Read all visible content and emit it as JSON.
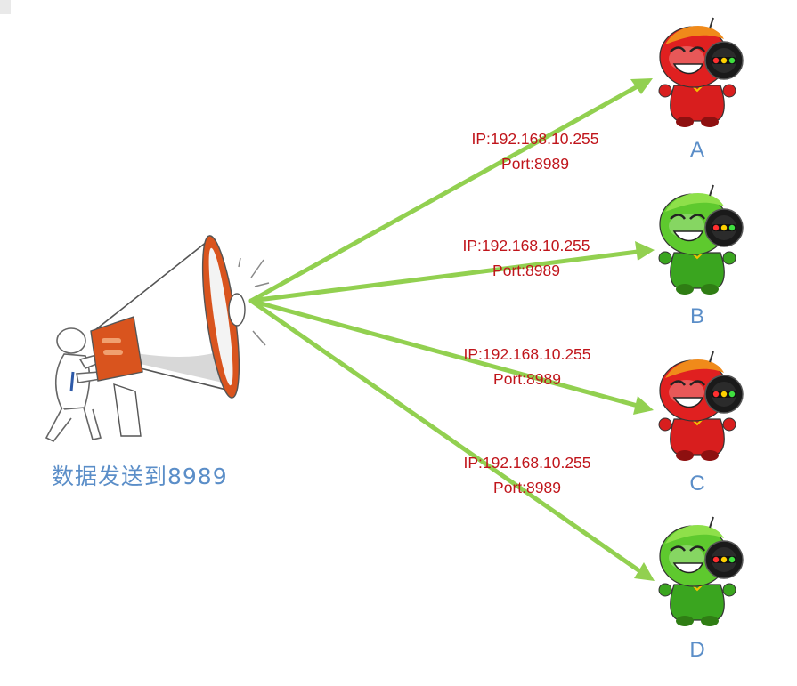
{
  "sender": {
    "caption": "数据发送到8989"
  },
  "receivers": [
    {
      "label": "A",
      "ip": "IP:192.168.10.255",
      "port": "Port:8989",
      "color": "red"
    },
    {
      "label": "B",
      "ip": "IP:192.168.10.255",
      "port": "Port:8989",
      "color": "green"
    },
    {
      "label": "C",
      "ip": "IP:192.168.10.255",
      "port": "Port:8989",
      "color": "red"
    },
    {
      "label": "D",
      "ip": "IP:192.168.10.255",
      "port": "Port:8989",
      "color": "green"
    }
  ],
  "colors": {
    "arrow": "#92d050",
    "caption": "#5b8ec8",
    "address": "#c0151b",
    "megaphone_orange": "#d9541e"
  }
}
